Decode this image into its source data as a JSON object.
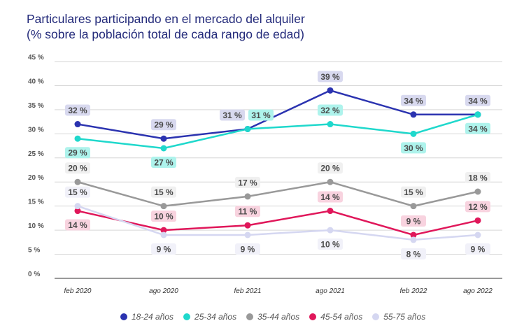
{
  "chart_data": {
    "type": "line",
    "title": "Particulares participando en el mercado del alquiler",
    "subtitle": "(% sobre la población total de cada rango de edad)",
    "xlabel": "",
    "ylabel": "",
    "categories": [
      "feb 2020",
      "ago 2020",
      "feb 2021",
      "ago 2021",
      "feb 2022",
      "ago 2022"
    ],
    "ylim": [
      0,
      45
    ],
    "yticks": [
      0,
      5,
      10,
      15,
      20,
      25,
      30,
      35,
      40,
      45
    ],
    "ytick_labels": [
      "0 %",
      "5 %",
      "10 %",
      "15 %",
      "20 %",
      "25 %",
      "30 %",
      "35 %",
      "40 %",
      "45 %"
    ],
    "grid": true,
    "legend": "bottom",
    "series": [
      {
        "name": "18-24 años",
        "color": "#2b33b0",
        "label_bg": "#d8d9ef",
        "values": [
          32,
          29,
          31,
          39,
          34,
          34
        ],
        "labels": [
          "32 %",
          "29 %",
          "31 %",
          "39 %",
          "34 %",
          "34 %"
        ]
      },
      {
        "name": "25-34 años",
        "color": "#1fd8cc",
        "label_bg": "#aef3ec",
        "values": [
          29,
          27,
          31,
          32,
          30,
          34
        ],
        "labels": [
          "29 %",
          "27 %",
          "31 %",
          "32 %",
          "30 %",
          "34 %"
        ]
      },
      {
        "name": "35-44 años",
        "color": "#999999",
        "label_bg": "#f0f0f0",
        "values": [
          20,
          15,
          17,
          20,
          15,
          18
        ],
        "labels": [
          "20 %",
          "15 %",
          "17 %",
          "20 %",
          "15 %",
          "18 %"
        ]
      },
      {
        "name": "45-54 años",
        "color": "#e0175a",
        "label_bg": "#f8d3df",
        "values": [
          14,
          10,
          11,
          14,
          9,
          12
        ],
        "labels": [
          "14 %",
          "10 %",
          "11 %",
          "14 %",
          "9 %",
          "12 %"
        ]
      },
      {
        "name": "55-75 años",
        "color": "#d5d7f1",
        "label_bg": "#f1f1f9",
        "values": [
          15,
          9,
          9,
          10,
          8,
          9
        ],
        "labels": [
          "15 %",
          "9 %",
          "9 %",
          "10 %",
          "8 %",
          "9 %"
        ]
      }
    ]
  }
}
